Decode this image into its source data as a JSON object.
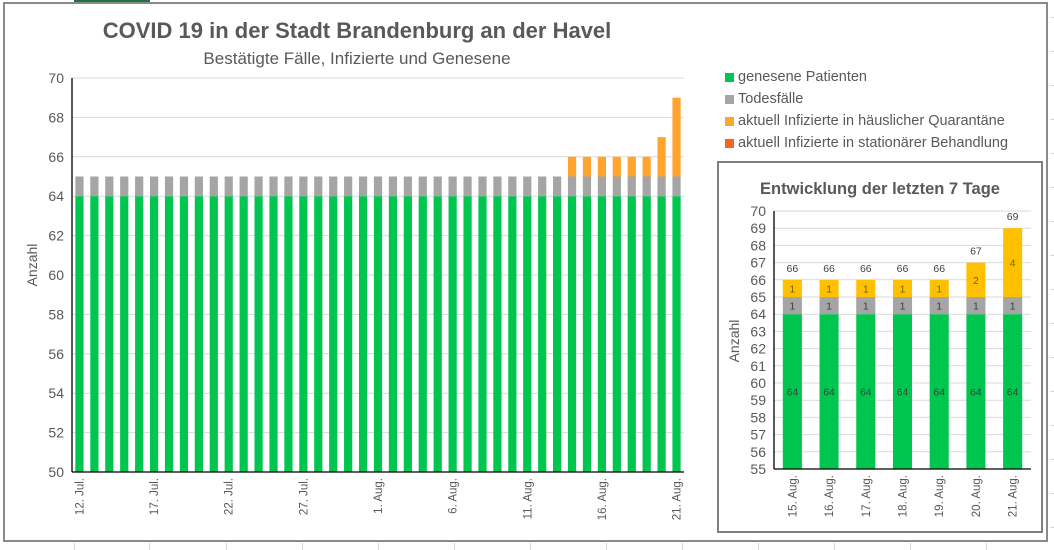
{
  "chart_data": [
    {
      "type": "bar",
      "stacked": true,
      "title": "COVID 19 in der Stadt Brandenburg an der Havel",
      "subtitle": "Bestätigte Fälle, Infizierte und Genesene",
      "xlabel": "",
      "ylabel": "Anzahl",
      "ylim": [
        50,
        70
      ],
      "yticks": [
        50,
        52,
        54,
        56,
        58,
        60,
        62,
        64,
        66,
        68,
        70
      ],
      "grid": true,
      "legend_position": "right",
      "x_start": "12. Jul.",
      "categories": [
        "12. Jul.",
        "13. Jul.",
        "14. Jul.",
        "15. Jul.",
        "16. Jul.",
        "17. Jul.",
        "18. Jul.",
        "19. Jul.",
        "20. Jul.",
        "21. Jul.",
        "22. Jul.",
        "23. Jul.",
        "24. Jul.",
        "25. Jul.",
        "26. Jul.",
        "27. Jul.",
        "28. Jul.",
        "29. Jul.",
        "30. Jul.",
        "31. Jul.",
        "1. Aug.",
        "2. Aug.",
        "3. Aug.",
        "4. Aug.",
        "5. Aug.",
        "6. Aug.",
        "7. Aug.",
        "8. Aug.",
        "9. Aug.",
        "10. Aug.",
        "11. Aug.",
        "12. Aug.",
        "13. Aug.",
        "14. Aug.",
        "15. Aug.",
        "16. Aug.",
        "17. Aug.",
        "18. Aug.",
        "19. Aug.",
        "20. Aug.",
        "21. Aug."
      ],
      "tick_labels": [
        "12. Jul.",
        "17. Jul.",
        "22. Jul.",
        "27. Jul.",
        "1. Aug.",
        "6. Aug.",
        "11. Aug.",
        "16. Aug.",
        "21. Aug."
      ],
      "series": [
        {
          "name": "genesene Patienten",
          "color": "#00c650",
          "values": [
            64,
            64,
            64,
            64,
            64,
            64,
            64,
            64,
            64,
            64,
            64,
            64,
            64,
            64,
            64,
            64,
            64,
            64,
            64,
            64,
            64,
            64,
            64,
            64,
            64,
            64,
            64,
            64,
            64,
            64,
            64,
            64,
            64,
            64,
            64,
            64,
            64,
            64,
            64,
            64,
            64
          ]
        },
        {
          "name": "Todesfälle",
          "color": "#a5a5a5",
          "values": [
            1,
            1,
            1,
            1,
            1,
            1,
            1,
            1,
            1,
            1,
            1,
            1,
            1,
            1,
            1,
            1,
            1,
            1,
            1,
            1,
            1,
            1,
            1,
            1,
            1,
            1,
            1,
            1,
            1,
            1,
            1,
            1,
            1,
            1,
            1,
            1,
            1,
            1,
            1,
            1,
            1
          ]
        },
        {
          "name": "aktuell Infizierte in häuslicher Quarantäne",
          "color": "#ffa42f",
          "values": [
            0,
            0,
            0,
            0,
            0,
            0,
            0,
            0,
            0,
            0,
            0,
            0,
            0,
            0,
            0,
            0,
            0,
            0,
            0,
            0,
            0,
            0,
            0,
            0,
            0,
            0,
            0,
            0,
            0,
            0,
            0,
            0,
            0,
            1,
            1,
            1,
            1,
            1,
            1,
            2,
            4
          ]
        },
        {
          "name": "aktuell Infizierte in stationärer Behandlung",
          "color": "#f56423",
          "values": [
            0,
            0,
            0,
            0,
            0,
            0,
            0,
            0,
            0,
            0,
            0,
            0,
            0,
            0,
            0,
            0,
            0,
            0,
            0,
            0,
            0,
            0,
            0,
            0,
            0,
            0,
            0,
            0,
            0,
            0,
            0,
            0,
            0,
            0,
            0,
            0,
            0,
            0,
            0,
            0,
            0
          ]
        }
      ]
    },
    {
      "type": "bar",
      "stacked": true,
      "title": "Entwicklung der letzten 7 Tage",
      "xlabel": "",
      "ylabel": "Anzahl",
      "ylim": [
        55,
        70
      ],
      "yticks": [
        55,
        56,
        57,
        58,
        59,
        60,
        61,
        62,
        63,
        64,
        65,
        66,
        67,
        68,
        69,
        70
      ],
      "grid": true,
      "categories": [
        "15. Aug.",
        "16. Aug.",
        "17. Aug.",
        "18. Aug.",
        "19. Aug.",
        "20. Aug.",
        "21. Aug."
      ],
      "totals": [
        66,
        66,
        66,
        66,
        66,
        67,
        69
      ],
      "series": [
        {
          "name": "genesene Patienten",
          "color": "#00c650",
          "values": [
            64,
            64,
            64,
            64,
            64,
            64,
            64
          ]
        },
        {
          "name": "Todesfälle",
          "color": "#a5a5a5",
          "values": [
            1,
            1,
            1,
            1,
            1,
            1,
            1
          ]
        },
        {
          "name": "aktuell Infizierte in häuslicher Quarantäne",
          "color": "#ffc000",
          "values": [
            1,
            1,
            1,
            1,
            1,
            2,
            4
          ]
        }
      ]
    }
  ]
}
